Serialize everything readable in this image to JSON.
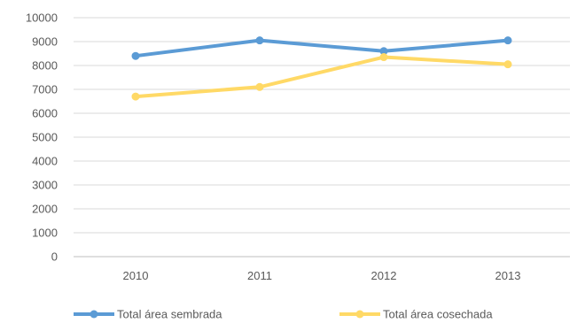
{
  "chart_data": {
    "type": "line",
    "categories": [
      "2010",
      "2011",
      "2012",
      "2013"
    ],
    "series": [
      {
        "name": "Total área sembrada",
        "color": "#5b9bd5",
        "values": [
          8400,
          9050,
          8600,
          9050
        ]
      },
      {
        "name": "Total área cosechada",
        "color": "#ffd966",
        "values": [
          6700,
          7100,
          8350,
          8050
        ]
      }
    ],
    "y_ticks": [
      "0",
      "1000",
      "2000",
      "3000",
      "4000",
      "5000",
      "6000",
      "7000",
      "8000",
      "9000",
      "10000"
    ],
    "ylim": [
      0,
      10000
    ],
    "grid": true,
    "legend_position": "bottom"
  }
}
